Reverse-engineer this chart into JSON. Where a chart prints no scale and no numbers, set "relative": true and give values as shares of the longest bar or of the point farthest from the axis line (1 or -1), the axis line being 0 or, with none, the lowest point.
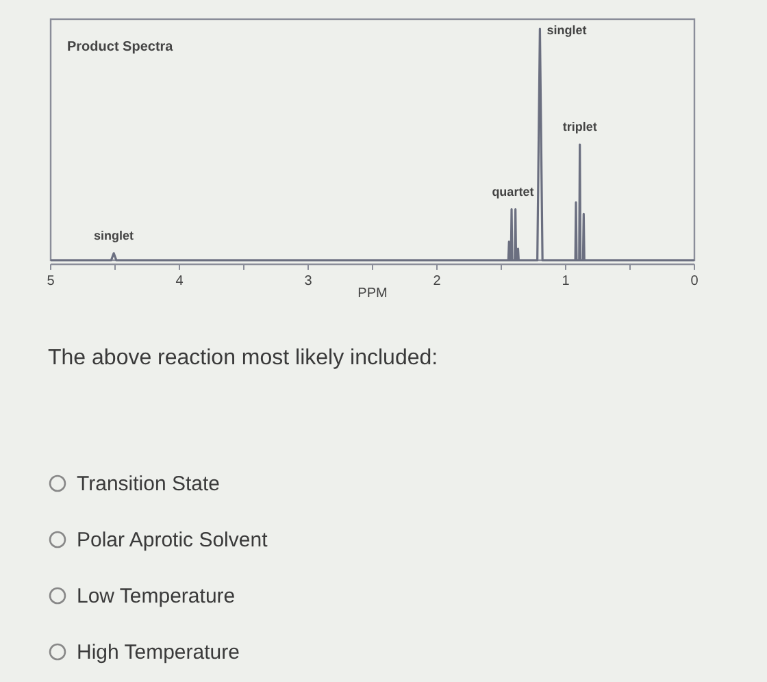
{
  "chart_data": {
    "type": "line",
    "title": "Product Spectra",
    "xlabel": "PPM",
    "relative": true,
    "x": [
      5,
      4.53,
      4.51,
      4.49,
      1.46,
      1.445,
      1.44,
      1.435,
      1.425,
      1.42,
      1.415,
      1.405,
      1.395,
      1.39,
      1.385,
      1.375,
      1.37,
      1.365,
      1.35,
      1.22,
      1.2,
      1.18,
      0.94,
      0.925,
      0.92,
      0.915,
      0.895,
      0.89,
      0.885,
      0.865,
      0.86,
      0.855,
      0.84,
      0
    ],
    "series": [
      {
        "color": "#6b6f80",
        "values": [
          0,
          0,
          0.03,
          0,
          0,
          0,
          0.08,
          0,
          0,
          0.22,
          0,
          0,
          0,
          0.22,
          0,
          0,
          0.05,
          0,
          0,
          0,
          1,
          0,
          0,
          0,
          0.25,
          0,
          0,
          0.5,
          0,
          0,
          0.2,
          0,
          0,
          0
        ]
      }
    ],
    "xlim": [
      5,
      0
    ],
    "xticks": [
      5,
      {
        "value": 4.5,
        "label": null
      },
      4,
      {
        "value": 3.5,
        "label": null
      },
      3,
      {
        "value": 2.5,
        "label": null
      },
      2,
      {
        "value": 1.5,
        "label": null
      },
      1,
      {
        "value": 0.5,
        "label": null
      },
      0
    ],
    "marker": "none",
    "grid": false,
    "annotations": [
      {
        "text": "singlet",
        "x": 4.51,
        "y": 0.03
      },
      {
        "text": "quartet",
        "x": 1.41,
        "y": 0.22
      },
      {
        "text": "singlet",
        "x": 1.2,
        "y": 1
      },
      {
        "text": "triplet",
        "x": 0.89,
        "y": 0.5
      },
      "The above reaction most likely included:",
      "Transition State",
      "Polar Aprotic Solvent",
      "Low Temperature",
      "High Temperature"
    ]
  }
}
